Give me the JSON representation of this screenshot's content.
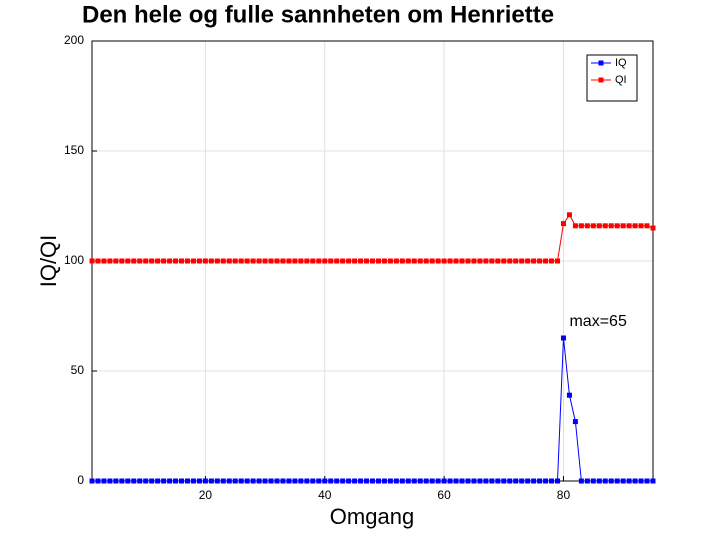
{
  "chart_data": {
    "type": "line",
    "title": "Den hele og fulle sannheten om Henriette",
    "x_label": "Omgang",
    "y_label": "IQ/QI",
    "x": [
      1,
      2,
      3,
      4,
      5,
      6,
      7,
      8,
      9,
      10,
      11,
      12,
      13,
      14,
      15,
      16,
      17,
      18,
      19,
      20,
      21,
      22,
      23,
      24,
      25,
      26,
      27,
      28,
      29,
      30,
      31,
      32,
      33,
      34,
      35,
      36,
      37,
      38,
      39,
      40,
      41,
      42,
      43,
      44,
      45,
      46,
      47,
      48,
      49,
      50,
      51,
      52,
      53,
      54,
      55,
      56,
      57,
      58,
      59,
      60,
      61,
      62,
      63,
      64,
      65,
      66,
      67,
      68,
      69,
      70,
      71,
      72,
      73,
      74,
      75,
      76,
      77,
      78,
      79,
      80,
      81,
      82,
      83,
      84,
      85,
      86,
      87,
      88,
      89,
      90,
      91,
      92,
      93,
      94,
      95
    ],
    "series": [
      {
        "name": "IQ",
        "color": "#0000ff",
        "values": [
          0,
          0,
          0,
          0,
          0,
          0,
          0,
          0,
          0,
          0,
          0,
          0,
          0,
          0,
          0,
          0,
          0,
          0,
          0,
          0,
          0,
          0,
          0,
          0,
          0,
          0,
          0,
          0,
          0,
          0,
          0,
          0,
          0,
          0,
          0,
          0,
          0,
          0,
          0,
          0,
          0,
          0,
          0,
          0,
          0,
          0,
          0,
          0,
          0,
          0,
          0,
          0,
          0,
          0,
          0,
          0,
          0,
          0,
          0,
          0,
          0,
          0,
          0,
          0,
          0,
          0,
          0,
          0,
          0,
          0,
          0,
          0,
          0,
          0,
          0,
          0,
          0,
          0,
          0,
          65,
          39,
          27,
          0,
          0,
          0,
          0,
          0,
          0,
          0,
          0,
          0,
          0,
          0,
          0,
          0
        ]
      },
      {
        "name": "QI",
        "color": "#ff0000",
        "values": [
          100,
          100,
          100,
          100,
          100,
          100,
          100,
          100,
          100,
          100,
          100,
          100,
          100,
          100,
          100,
          100,
          100,
          100,
          100,
          100,
          100,
          100,
          100,
          100,
          100,
          100,
          100,
          100,
          100,
          100,
          100,
          100,
          100,
          100,
          100,
          100,
          100,
          100,
          100,
          100,
          100,
          100,
          100,
          100,
          100,
          100,
          100,
          100,
          100,
          100,
          100,
          100,
          100,
          100,
          100,
          100,
          100,
          100,
          100,
          100,
          100,
          100,
          100,
          100,
          100,
          100,
          100,
          100,
          100,
          100,
          100,
          100,
          100,
          100,
          100,
          100,
          100,
          100,
          100,
          117,
          121,
          116,
          116,
          116,
          116,
          116,
          116,
          116,
          116,
          116,
          116,
          116,
          116,
          116,
          115
        ]
      }
    ],
    "annotations": [
      "max=65"
    ],
    "xlim": [
      1,
      95
    ],
    "ylim": [
      0,
      200
    ],
    "xticks": [
      20,
      40,
      60,
      80
    ],
    "yticks": [
      0,
      50,
      100,
      150,
      200
    ],
    "grid": true,
    "legend": "northeast"
  }
}
